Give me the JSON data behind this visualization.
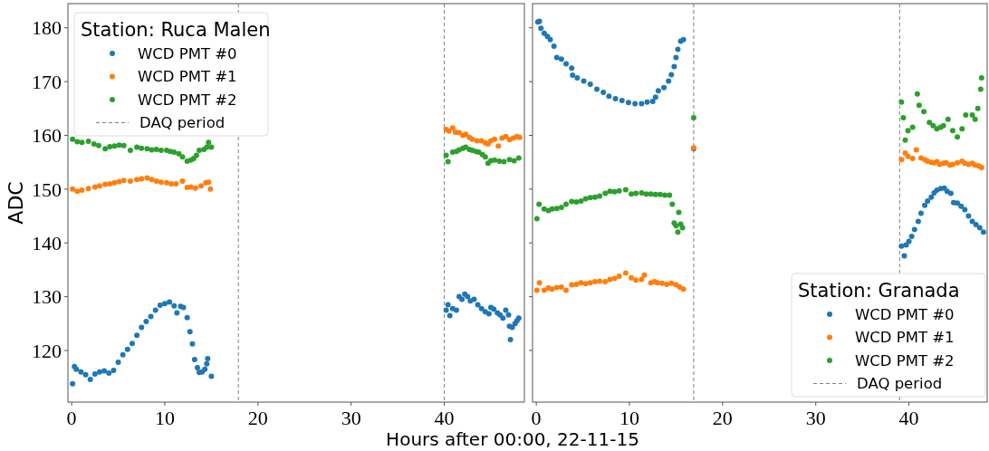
{
  "chart_data": [
    {
      "type": "scatter",
      "ylabel": "ADC",
      "xlabel": "Hours after 00:00, 22-11-15",
      "legend_title": "Station: Ruca Malen",
      "legend": "top left",
      "marker": "circle",
      "xlim": [
        -0.4,
        48.6
      ],
      "ylim": [
        110.4,
        184.5
      ],
      "xticks": [
        0,
        10,
        20,
        30,
        40
      ],
      "yticks": [
        120,
        130,
        140,
        150,
        160,
        170,
        180
      ],
      "ref_lines": [
        {
          "axis": "x",
          "value": 17.9,
          "label": "DAQ period",
          "color": "#808080",
          "line_style": "dashed"
        },
        {
          "axis": "x",
          "value": 40.0,
          "color": "#808080",
          "line_style": "dashed"
        }
      ],
      "series": [
        {
          "name": "WCD PMT #0",
          "color": "#1f77b4",
          "x": [
            0.1,
            0.3,
            0.5,
            1.0,
            1.5,
            2.0,
            2.5,
            3.0,
            3.5,
            4.0,
            4.5,
            5.0,
            5.5,
            6.0,
            6.5,
            7.0,
            7.5,
            8.0,
            8.5,
            9.0,
            9.5,
            10.0,
            10.5,
            11.0,
            11.3,
            11.7,
            12.0,
            12.4,
            12.7,
            12.96,
            13.2,
            13.5,
            13.7,
            14.0,
            14.3,
            14.5,
            14.6,
            15.0,
            40.2,
            40.4,
            40.6,
            40.9,
            41.3,
            41.6,
            41.9,
            42.2,
            42.5,
            42.8,
            43.2,
            43.6,
            44.0,
            44.4,
            44.8,
            45.0,
            45.3,
            45.7,
            46.0,
            46.3,
            46.6,
            46.9,
            47.0,
            47.1,
            47.3,
            47.6,
            47.8,
            48.0
          ],
          "values": [
            113.8,
            117.0,
            116.5,
            116.0,
            115.5,
            114.6,
            115.6,
            116.0,
            116.2,
            115.8,
            116.3,
            117.8,
            119.2,
            120.2,
            121.3,
            122.8,
            124.3,
            125.4,
            126.3,
            127.5,
            128.4,
            128.7,
            129.0,
            128.3,
            127.0,
            128.2,
            128.0,
            126.1,
            123.5,
            121.2,
            118.3,
            116.8,
            115.9,
            116.0,
            116.5,
            117.5,
            118.5,
            115.2,
            127.5,
            128.5,
            126.5,
            127.8,
            127.5,
            130.0,
            129.5,
            130.5,
            130.0,
            129.2,
            129.5,
            128.5,
            127.8,
            127.2,
            126.8,
            128.0,
            127.7,
            127.0,
            126.6,
            126.0,
            127.5,
            126.6,
            124.5,
            122.0,
            124.3,
            125.0,
            125.5,
            126.0
          ]
        },
        {
          "name": "WCD PMT #1",
          "color": "#ff7f0e",
          "x": [
            0.1,
            0.6,
            1.1,
            1.8,
            2.5,
            3.0,
            3.6,
            4.1,
            4.6,
            5.1,
            5.6,
            6.3,
            7.0,
            7.5,
            8.1,
            8.6,
            9.1,
            9.6,
            10.2,
            10.7,
            11.2,
            11.9,
            12.4,
            12.8,
            13.3,
            13.9,
            14.4,
            14.7,
            14.9,
            40.2,
            40.5,
            40.9,
            41.2,
            41.6,
            42.0,
            42.3,
            42.7,
            43.0,
            43.5,
            44.0,
            44.4,
            44.7,
            45.0,
            45.4,
            45.8,
            46.2,
            46.6,
            47.0,
            47.4,
            47.8,
            48.1
          ],
          "values": [
            150.0,
            149.6,
            149.8,
            150.1,
            150.4,
            150.6,
            150.9,
            151.0,
            151.2,
            151.4,
            151.6,
            151.5,
            151.8,
            151.9,
            152.1,
            151.8,
            151.5,
            151.3,
            151.2,
            151.0,
            151.0,
            151.5,
            150.3,
            150.4,
            150.2,
            150.6,
            151.2,
            151.3,
            150.0,
            161.1,
            160.8,
            161.4,
            160.6,
            160.5,
            160.0,
            160.2,
            159.6,
            159.3,
            159.0,
            159.0,
            158.6,
            158.4,
            159.0,
            159.3,
            158.0,
            159.5,
            159.8,
            159.2,
            159.5,
            159.8,
            159.6
          ]
        },
        {
          "name": "WCD PMT #2",
          "color": "#2ca02c",
          "x": [
            0.1,
            0.6,
            1.1,
            1.8,
            2.4,
            2.9,
            3.6,
            4.1,
            4.6,
            5.1,
            5.6,
            6.3,
            7.0,
            7.5,
            8.1,
            8.6,
            9.1,
            9.6,
            10.2,
            10.6,
            11.0,
            11.5,
            11.9,
            12.4,
            12.8,
            13.1,
            13.4,
            13.7,
            14.2,
            14.5,
            14.7,
            15.0,
            40.2,
            40.4,
            40.9,
            41.3,
            41.6,
            42.0,
            42.3,
            42.7,
            43.0,
            43.4,
            43.7,
            44.1,
            44.4,
            44.7,
            45.0,
            45.4,
            45.9,
            46.4,
            47.0,
            47.5,
            48.0
          ],
          "values": [
            159.3,
            158.8,
            158.7,
            158.9,
            158.4,
            158.1,
            157.5,
            157.9,
            158.0,
            158.2,
            158.1,
            157.2,
            157.8,
            157.6,
            157.5,
            157.3,
            157.4,
            157.2,
            157.2,
            157.0,
            156.9,
            156.6,
            156.0,
            155.2,
            155.4,
            155.7,
            156.3,
            157.2,
            157.4,
            157.8,
            158.7,
            157.8,
            156.3,
            155.1,
            156.9,
            157.0,
            157.3,
            157.6,
            157.8,
            157.4,
            157.2,
            157.0,
            156.9,
            156.4,
            156.0,
            154.8,
            155.3,
            155.4,
            155.2,
            155.1,
            155.5,
            155.3,
            155.8
          ]
        }
      ]
    },
    {
      "type": "scatter",
      "legend_title": "Station: Granada",
      "legend": "bottom right",
      "marker": "circle",
      "tick_labels": "x",
      "xlim": [
        -0.4,
        48.4
      ],
      "ylim": [
        110.4,
        184.5
      ],
      "xticks": [
        0,
        10,
        20,
        30,
        40
      ],
      "yticks": [
        120,
        130,
        140,
        150,
        160,
        170,
        180
      ],
      "ref_lines": [
        {
          "axis": "x",
          "value": 16.9,
          "color": "#808080",
          "line_style": "dashed"
        },
        {
          "axis": "x",
          "value": 39.0,
          "label": "DAQ period",
          "color": "#808080",
          "line_style": "dashed"
        }
      ],
      "series": [
        {
          "name": "WCD PMT #0",
          "color": "#1f77b4",
          "x": [
            0.17,
            0.34,
            0.5,
            0.85,
            1.2,
            1.5,
            1.9,
            2.2,
            2.7,
            3.2,
            3.8,
            3.9,
            4.4,
            5.1,
            5.8,
            6.5,
            7.2,
            7.8,
            8.5,
            9.2,
            9.9,
            10.6,
            11.3,
            11.9,
            12.5,
            12.8,
            13.1,
            13.7,
            14.2,
            14.5,
            14.8,
            15.0,
            15.2,
            15.5,
            15.8,
            16.9,
            39.2,
            39.5,
            39.7,
            40.0,
            40.3,
            40.6,
            41.0,
            41.3,
            41.7,
            42.0,
            42.4,
            42.7,
            43.0,
            43.4,
            43.8,
            44.1,
            44.5,
            44.8,
            45.2,
            45.6,
            46.0,
            46.4,
            46.8,
            47.2,
            47.6,
            48.0
          ],
          "values": [
            181.1,
            181.2,
            179.9,
            179.0,
            178.4,
            177.8,
            176.6,
            174.5,
            174.2,
            173.3,
            172.5,
            171.2,
            170.7,
            170.1,
            169.5,
            168.6,
            168.0,
            167.3,
            166.8,
            166.5,
            166.1,
            165.9,
            165.9,
            166.2,
            166.3,
            167.1,
            168.3,
            168.9,
            170.1,
            171.3,
            172.8,
            174.5,
            176.0,
            177.5,
            177.8,
            157.5,
            139.4,
            137.6,
            139.6,
            140.3,
            141.2,
            142.5,
            144.0,
            145.5,
            147.0,
            147.8,
            148.5,
            149.3,
            149.8,
            150.1,
            150.2,
            149.6,
            149.2,
            147.5,
            147.4,
            146.8,
            146.2,
            145.0,
            144.0,
            143.4,
            142.8,
            142.0
          ]
        },
        {
          "name": "WCD PMT #1",
          "color": "#ff7f0e",
          "x": [
            0.07,
            0.34,
            0.85,
            1.3,
            1.7,
            2.2,
            2.7,
            3.2,
            3.8,
            4.3,
            4.8,
            5.3,
            5.8,
            6.3,
            6.8,
            7.4,
            7.9,
            8.4,
            8.9,
            9.6,
            10.2,
            10.7,
            11.3,
            11.6,
            12.3,
            12.7,
            13.0,
            13.5,
            14.0,
            14.5,
            15.0,
            15.4,
            15.8,
            16.9,
            39.2,
            39.6,
            39.9,
            40.4,
            40.8,
            41.3,
            41.7,
            42.0,
            42.4,
            42.7,
            43.0,
            43.3,
            43.7,
            44.0,
            44.4,
            44.7,
            45.2,
            45.7,
            46.0,
            46.4,
            46.8,
            47.1,
            47.5,
            47.8
          ],
          "values": [
            131.2,
            132.6,
            131.2,
            131.6,
            131.4,
            131.7,
            131.8,
            131.2,
            132.2,
            132.3,
            132.6,
            132.4,
            132.6,
            132.8,
            132.9,
            132.8,
            133.2,
            133.4,
            133.8,
            134.4,
            133.5,
            133.1,
            133.2,
            134.0,
            132.6,
            132.8,
            132.6,
            132.5,
            132.3,
            132.5,
            132.2,
            131.8,
            131.4,
            157.7,
            155.5,
            156.7,
            156.1,
            155.7,
            157.3,
            155.8,
            155.5,
            155.2,
            155.0,
            154.9,
            155.1,
            154.6,
            154.8,
            154.9,
            154.5,
            154.6,
            154.9,
            155.2,
            154.8,
            154.6,
            154.8,
            154.5,
            154.3,
            154.0
          ]
        },
        {
          "name": "WCD PMT #2",
          "color": "#2ca02c",
          "x": [
            0.07,
            0.3,
            0.85,
            1.3,
            1.7,
            2.2,
            2.7,
            3.2,
            3.8,
            4.3,
            4.8,
            5.3,
            5.8,
            6.3,
            6.8,
            7.4,
            7.9,
            8.4,
            8.9,
            9.6,
            10.2,
            10.7,
            11.3,
            11.8,
            12.3,
            12.8,
            13.3,
            13.8,
            14.3,
            14.6,
            14.8,
            15.0,
            15.2,
            15.3,
            15.5,
            15.7,
            16.9,
            39.2,
            39.4,
            39.6,
            39.9,
            40.4,
            40.9,
            41.1,
            41.6,
            42.2,
            42.6,
            43.0,
            43.4,
            43.7,
            44.2,
            44.7,
            45.2,
            45.7,
            46.1,
            46.8,
            47.1,
            47.4,
            47.7,
            47.8
          ],
          "values": [
            144.5,
            147.2,
            146.3,
            146.0,
            146.3,
            146.4,
            146.6,
            147.2,
            147.7,
            147.6,
            147.8,
            148.2,
            148.4,
            148.5,
            148.7,
            149.2,
            149.6,
            149.5,
            149.7,
            149.9,
            149.1,
            149.2,
            149.3,
            149.1,
            149.1,
            149.0,
            149.0,
            148.9,
            148.9,
            147.2,
            143.7,
            143.2,
            142.0,
            145.7,
            143.5,
            142.8,
            163.3,
            166.2,
            163.3,
            159.1,
            160.9,
            161.5,
            167.7,
            165.6,
            164.4,
            162.4,
            161.8,
            161.2,
            161.5,
            161.8,
            163.0,
            160.9,
            159.7,
            161.2,
            163.8,
            163.8,
            163.0,
            165.0,
            168.6,
            170.7
          ]
        }
      ]
    }
  ]
}
